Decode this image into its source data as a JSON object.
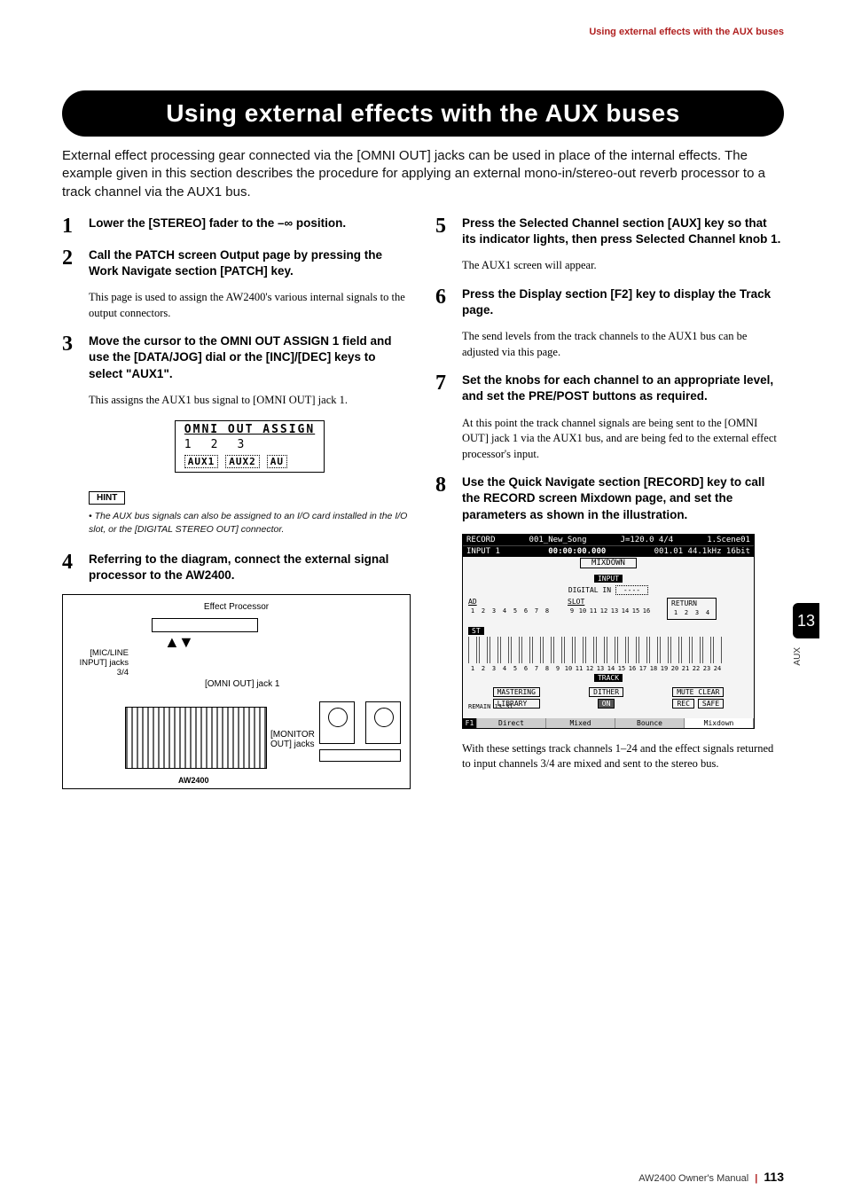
{
  "header": {
    "right": "Using external effects with the AUX buses"
  },
  "title": "Using external effects with the AUX buses",
  "intro": "External effect processing gear connected via the [OMNI OUT] jacks can be used in place of the internal effects. The example given in this section describes the procedure for applying an external mono-in/stereo-out reverb processor to a track channel via the AUX1 bus.",
  "steps_left": [
    {
      "num": "1",
      "title": "Lower the [STEREO] fader to the –∞ position.",
      "body": ""
    },
    {
      "num": "2",
      "title": "Call the PATCH screen Output page by pressing the Work Navigate section [PATCH] key.",
      "body": "This page is used to assign the AW2400's various internal signals to the output connectors."
    },
    {
      "num": "3",
      "title": "Move the cursor to the OMNI OUT ASSIGN 1 field and use the [DATA/JOG] dial or the [INC]/[DEC] keys to select \"AUX1\".",
      "body": "This assigns the AUX1 bus signal to [OMNI OUT] jack 1."
    },
    {
      "num": "4",
      "title": "Referring to the diagram, connect the external signal processor to the AW2400.",
      "body": ""
    }
  ],
  "steps_right": [
    {
      "num": "5",
      "title": "Press the Selected Channel section [AUX] key so that its indicator lights, then press Selected Channel knob 1.",
      "body": "The AUX1 screen will appear."
    },
    {
      "num": "6",
      "title": "Press the Display section [F2] key to display the Track page.",
      "body": "The send levels from the track channels to the AUX1 bus can be adjusted via this page."
    },
    {
      "num": "7",
      "title": "Set the knobs for each channel to an appropriate level, and set the PRE/POST buttons as required.",
      "body": "At this point the track channel signals are being sent to the [OMNI OUT] jack 1 via the AUX1 bus, and are being fed to the external effect processor's input."
    },
    {
      "num": "8",
      "title": "Use the Quick Navigate section [RECORD] key to call the RECORD screen Mixdown page, and set the parameters as shown in the illustration.",
      "body": ""
    }
  ],
  "omni": {
    "heading": "OMNI OUT ASSIGN",
    "nums": [
      "1",
      "2",
      "3"
    ],
    "assigns": [
      "AUX1",
      "AUX2",
      "AU"
    ]
  },
  "hint": {
    "label": "HINT",
    "text": "• The AUX bus signals can also be assigned to an I/O card installed in the I/O slot, or the [DIGITAL STEREO OUT] connector."
  },
  "diagram": {
    "top": "Effect Processor",
    "left": "[MIC/LINE INPUT] jacks 3/4",
    "omni": "[OMNI OUT] jack 1",
    "monitor": "[MONITOR OUT] jacks",
    "bottom": "AW2400"
  },
  "screenshot": {
    "top_left": "RECORD",
    "song": "001_New_Song",
    "tempo": "J=120.0 4/4",
    "scene": "1.Scene01",
    "input1": "INPUT 1",
    "tc": "00:00:00.000",
    "loc": "001.01 44.1kHz 16bit",
    "tab": "MIXDOWN",
    "input_label": "INPUT",
    "digital_in": "DIGITAL IN",
    "ad": "AD",
    "slot": "SLOT",
    "return": "RETURN",
    "ad_nums": [
      "1",
      "2",
      "3",
      "4",
      "5",
      "6",
      "7",
      "8"
    ],
    "slot_nums": [
      "9",
      "10",
      "11",
      "12",
      "13",
      "14",
      "15",
      "16"
    ],
    "return_nums": [
      "1",
      "2",
      "3",
      "4"
    ],
    "st": "ST",
    "track": "TRACK",
    "track_nums": [
      "1",
      "2",
      "3",
      "4",
      "5",
      "6",
      "7",
      "8",
      "9",
      "10",
      "11",
      "12",
      "13",
      "14",
      "15",
      "16",
      "17",
      "18",
      "19",
      "20",
      "21",
      "22",
      "23",
      "24"
    ],
    "mastering": "MASTERING",
    "library": "LIBRARY",
    "dither": "DITHER",
    "on": "ON",
    "mute_clear": "MUTE CLEAR",
    "rec": "REC",
    "safe": "SAFE",
    "remain": "REMAIN 13:31",
    "footer": [
      "Direct",
      "Mixed",
      "Bounce",
      "Mixdown"
    ]
  },
  "closing": "With these settings track channels 1–24 and the effect signals returned to input channels 3/4 are mixed and sent to the stereo bus.",
  "side": {
    "num": "13",
    "label": "AUX"
  },
  "footer": {
    "manual": "AW2400  Owner's Manual",
    "page": "113"
  }
}
